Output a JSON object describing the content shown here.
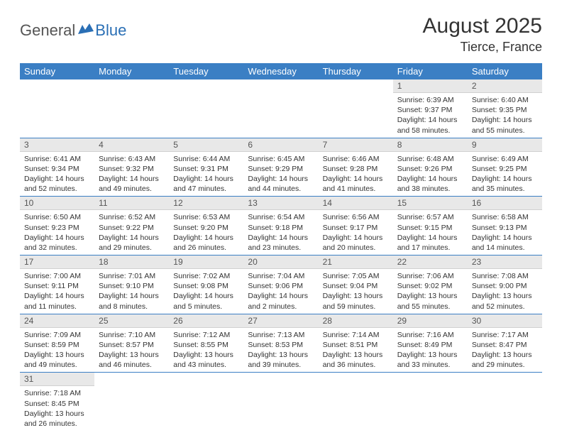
{
  "logo": {
    "part1": "General",
    "part2": "Blue"
  },
  "title": "August 2025",
  "location": "Tierce, France",
  "colors": {
    "header_bg": "#3b7fc4",
    "header_text": "#ffffff",
    "daynum_bg": "#e8e8e8",
    "border": "#3b7fc4",
    "logo_gray": "#555555",
    "logo_blue": "#2a6fb5"
  },
  "weekdays": [
    "Sunday",
    "Monday",
    "Tuesday",
    "Wednesday",
    "Thursday",
    "Friday",
    "Saturday"
  ],
  "weeks": [
    [
      null,
      null,
      null,
      null,
      null,
      {
        "n": "1",
        "sr": "Sunrise: 6:39 AM",
        "ss": "Sunset: 9:37 PM",
        "dl": "Daylight: 14 hours and 58 minutes."
      },
      {
        "n": "2",
        "sr": "Sunrise: 6:40 AM",
        "ss": "Sunset: 9:35 PM",
        "dl": "Daylight: 14 hours and 55 minutes."
      }
    ],
    [
      {
        "n": "3",
        "sr": "Sunrise: 6:41 AM",
        "ss": "Sunset: 9:34 PM",
        "dl": "Daylight: 14 hours and 52 minutes."
      },
      {
        "n": "4",
        "sr": "Sunrise: 6:43 AM",
        "ss": "Sunset: 9:32 PM",
        "dl": "Daylight: 14 hours and 49 minutes."
      },
      {
        "n": "5",
        "sr": "Sunrise: 6:44 AM",
        "ss": "Sunset: 9:31 PM",
        "dl": "Daylight: 14 hours and 47 minutes."
      },
      {
        "n": "6",
        "sr": "Sunrise: 6:45 AM",
        "ss": "Sunset: 9:29 PM",
        "dl": "Daylight: 14 hours and 44 minutes."
      },
      {
        "n": "7",
        "sr": "Sunrise: 6:46 AM",
        "ss": "Sunset: 9:28 PM",
        "dl": "Daylight: 14 hours and 41 minutes."
      },
      {
        "n": "8",
        "sr": "Sunrise: 6:48 AM",
        "ss": "Sunset: 9:26 PM",
        "dl": "Daylight: 14 hours and 38 minutes."
      },
      {
        "n": "9",
        "sr": "Sunrise: 6:49 AM",
        "ss": "Sunset: 9:25 PM",
        "dl": "Daylight: 14 hours and 35 minutes."
      }
    ],
    [
      {
        "n": "10",
        "sr": "Sunrise: 6:50 AM",
        "ss": "Sunset: 9:23 PM",
        "dl": "Daylight: 14 hours and 32 minutes."
      },
      {
        "n": "11",
        "sr": "Sunrise: 6:52 AM",
        "ss": "Sunset: 9:22 PM",
        "dl": "Daylight: 14 hours and 29 minutes."
      },
      {
        "n": "12",
        "sr": "Sunrise: 6:53 AM",
        "ss": "Sunset: 9:20 PM",
        "dl": "Daylight: 14 hours and 26 minutes."
      },
      {
        "n": "13",
        "sr": "Sunrise: 6:54 AM",
        "ss": "Sunset: 9:18 PM",
        "dl": "Daylight: 14 hours and 23 minutes."
      },
      {
        "n": "14",
        "sr": "Sunrise: 6:56 AM",
        "ss": "Sunset: 9:17 PM",
        "dl": "Daylight: 14 hours and 20 minutes."
      },
      {
        "n": "15",
        "sr": "Sunrise: 6:57 AM",
        "ss": "Sunset: 9:15 PM",
        "dl": "Daylight: 14 hours and 17 minutes."
      },
      {
        "n": "16",
        "sr": "Sunrise: 6:58 AM",
        "ss": "Sunset: 9:13 PM",
        "dl": "Daylight: 14 hours and 14 minutes."
      }
    ],
    [
      {
        "n": "17",
        "sr": "Sunrise: 7:00 AM",
        "ss": "Sunset: 9:11 PM",
        "dl": "Daylight: 14 hours and 11 minutes."
      },
      {
        "n": "18",
        "sr": "Sunrise: 7:01 AM",
        "ss": "Sunset: 9:10 PM",
        "dl": "Daylight: 14 hours and 8 minutes."
      },
      {
        "n": "19",
        "sr": "Sunrise: 7:02 AM",
        "ss": "Sunset: 9:08 PM",
        "dl": "Daylight: 14 hours and 5 minutes."
      },
      {
        "n": "20",
        "sr": "Sunrise: 7:04 AM",
        "ss": "Sunset: 9:06 PM",
        "dl": "Daylight: 14 hours and 2 minutes."
      },
      {
        "n": "21",
        "sr": "Sunrise: 7:05 AM",
        "ss": "Sunset: 9:04 PM",
        "dl": "Daylight: 13 hours and 59 minutes."
      },
      {
        "n": "22",
        "sr": "Sunrise: 7:06 AM",
        "ss": "Sunset: 9:02 PM",
        "dl": "Daylight: 13 hours and 55 minutes."
      },
      {
        "n": "23",
        "sr": "Sunrise: 7:08 AM",
        "ss": "Sunset: 9:00 PM",
        "dl": "Daylight: 13 hours and 52 minutes."
      }
    ],
    [
      {
        "n": "24",
        "sr": "Sunrise: 7:09 AM",
        "ss": "Sunset: 8:59 PM",
        "dl": "Daylight: 13 hours and 49 minutes."
      },
      {
        "n": "25",
        "sr": "Sunrise: 7:10 AM",
        "ss": "Sunset: 8:57 PM",
        "dl": "Daylight: 13 hours and 46 minutes."
      },
      {
        "n": "26",
        "sr": "Sunrise: 7:12 AM",
        "ss": "Sunset: 8:55 PM",
        "dl": "Daylight: 13 hours and 43 minutes."
      },
      {
        "n": "27",
        "sr": "Sunrise: 7:13 AM",
        "ss": "Sunset: 8:53 PM",
        "dl": "Daylight: 13 hours and 39 minutes."
      },
      {
        "n": "28",
        "sr": "Sunrise: 7:14 AM",
        "ss": "Sunset: 8:51 PM",
        "dl": "Daylight: 13 hours and 36 minutes."
      },
      {
        "n": "29",
        "sr": "Sunrise: 7:16 AM",
        "ss": "Sunset: 8:49 PM",
        "dl": "Daylight: 13 hours and 33 minutes."
      },
      {
        "n": "30",
        "sr": "Sunrise: 7:17 AM",
        "ss": "Sunset: 8:47 PM",
        "dl": "Daylight: 13 hours and 29 minutes."
      }
    ],
    [
      {
        "n": "31",
        "sr": "Sunrise: 7:18 AM",
        "ss": "Sunset: 8:45 PM",
        "dl": "Daylight: 13 hours and 26 minutes."
      },
      null,
      null,
      null,
      null,
      null,
      null
    ]
  ]
}
